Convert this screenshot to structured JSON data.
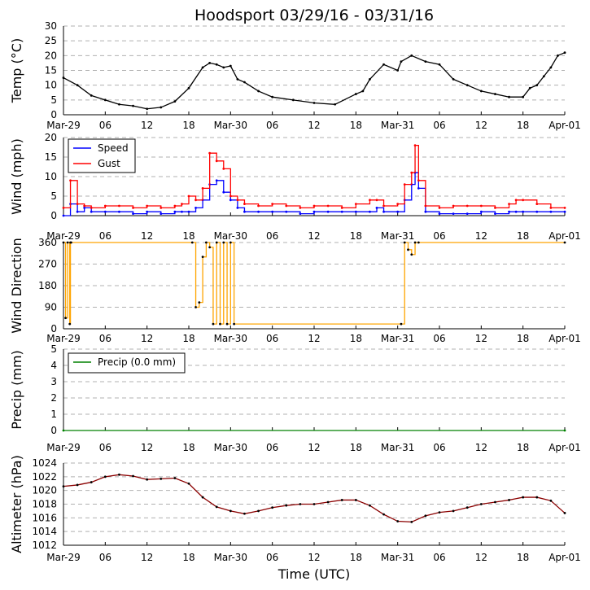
{
  "title": "Hoodsport 03/29/16 - 03/31/16",
  "xlabel": "Time (UTC)",
  "x_tick_labels": [
    "Mar-29",
    "06",
    "12",
    "18",
    "Mar-30",
    "06",
    "12",
    "18",
    "Mar-31",
    "06",
    "12",
    "18",
    "Apr-01"
  ],
  "colors": {
    "temp": "#000000",
    "speed": "#0000ff",
    "gust": "#ff0000",
    "direction_line": "#ffa500",
    "direction_marker": "#000000",
    "precip": "#008000",
    "altimeter_line": "#8b0000",
    "grid": "#b0b0b0"
  },
  "chart_data": [
    {
      "type": "line",
      "name": "temp",
      "ylabel": "Temp (°C)",
      "ylim": [
        0,
        30
      ],
      "yticks": [
        0,
        5,
        10,
        15,
        20,
        25,
        30
      ],
      "x_hours": [
        0,
        2,
        4,
        6,
        8,
        10,
        12,
        14,
        16,
        18,
        20,
        21,
        22,
        23,
        24,
        25,
        26,
        28,
        30,
        33,
        36,
        39,
        42,
        43,
        44,
        46,
        48,
        48.5,
        50,
        52,
        54,
        56,
        58,
        60,
        62,
        64,
        66,
        67,
        68,
        69,
        70,
        71,
        72
      ],
      "series": [
        {
          "name": "Temp",
          "values": [
            12.5,
            10,
            6.5,
            5,
            3.5,
            3,
            2,
            2.5,
            4.5,
            9,
            16,
            17.5,
            17,
            16,
            16.5,
            12,
            11,
            8,
            6,
            5,
            4,
            3.5,
            7,
            8,
            12,
            17,
            15,
            18,
            20,
            18,
            17,
            12,
            10,
            8,
            7,
            6,
            6,
            9,
            10,
            13,
            16,
            20,
            21
          ]
        }
      ]
    },
    {
      "type": "line",
      "name": "wind",
      "ylabel": "Wind (mph)",
      "ylim": [
        0,
        20
      ],
      "yticks": [
        0,
        5,
        10,
        15,
        20
      ],
      "legend": [
        "Speed",
        "Gust"
      ],
      "x_hours": [
        0,
        1,
        2,
        3,
        4,
        6,
        8,
        10,
        12,
        14,
        16,
        17,
        18,
        19,
        20,
        21,
        22,
        23,
        24,
        25,
        26,
        28,
        30,
        32,
        34,
        36,
        38,
        40,
        42,
        44,
        45,
        46,
        48,
        49,
        50,
        50.5,
        51,
        52,
        54,
        56,
        58,
        60,
        62,
        64,
        65,
        66,
        68,
        70,
        72
      ],
      "series": [
        {
          "name": "Speed",
          "values": [
            0,
            3,
            1,
            2,
            1,
            1,
            1,
            0.5,
            1,
            0.5,
            1,
            1,
            1,
            2,
            4,
            8,
            9,
            6,
            4,
            2,
            1,
            1,
            1,
            1,
            0.5,
            1,
            1,
            1,
            1,
            1,
            2,
            1,
            1,
            4,
            8,
            11,
            7,
            1,
            0.5,
            0.5,
            0.5,
            1,
            0.5,
            1,
            1,
            1,
            1,
            1,
            1
          ]
        },
        {
          "name": "Gust",
          "values": [
            2,
            9,
            3,
            2.5,
            2,
            2.5,
            2.5,
            2,
            2.5,
            2,
            2.5,
            3,
            5,
            4,
            7,
            16,
            14,
            12,
            5,
            4,
            3,
            2.5,
            3,
            2.5,
            2,
            2.5,
            2.5,
            2,
            3,
            4,
            4,
            2.5,
            3,
            8,
            11,
            18,
            9,
            2.5,
            2,
            2.5,
            2.5,
            2.5,
            2,
            3,
            4,
            4,
            3,
            2,
            2
          ]
        }
      ]
    },
    {
      "type": "line",
      "name": "wind_direction",
      "ylabel": "Wind Direction",
      "ylim": [
        0,
        360
      ],
      "yticks": [
        0,
        90,
        180,
        270,
        360
      ],
      "x_hours": [
        0,
        0.3,
        0.6,
        0.9,
        1,
        1.1,
        18.5,
        19,
        19.5,
        20,
        20.5,
        21,
        21.5,
        22,
        22.5,
        23,
        23.5,
        24,
        24.5,
        48.5,
        49,
        49.5,
        50,
        50.5,
        51,
        72
      ],
      "series": [
        {
          "name": "Direction",
          "values": [
            360,
            45,
            360,
            20,
            360,
            360,
            360,
            90,
            110,
            300,
            360,
            340,
            20,
            360,
            20,
            360,
            20,
            360,
            20,
            20,
            360,
            330,
            310,
            360,
            360,
            360
          ]
        }
      ]
    },
    {
      "type": "line",
      "name": "precip",
      "ylabel": "Precip (mm)",
      "ylim": [
        0,
        5
      ],
      "yticks": [
        0,
        1,
        2,
        3,
        4,
        5
      ],
      "legend": [
        "Precip (0.0 mm)"
      ],
      "x_hours": [
        0,
        72
      ],
      "series": [
        {
          "name": "Precip",
          "values": [
            0,
            0
          ]
        }
      ]
    },
    {
      "type": "line",
      "name": "altimeter",
      "ylabel": "Altimeter (hPa)",
      "ylim": [
        1012,
        1024
      ],
      "yticks": [
        1012,
        1014,
        1016,
        1018,
        1020,
        1022,
        1024
      ],
      "x_hours": [
        0,
        2,
        4,
        6,
        8,
        10,
        12,
        14,
        16,
        18,
        20,
        22,
        24,
        26,
        28,
        30,
        32,
        34,
        36,
        38,
        40,
        42,
        44,
        46,
        48,
        50,
        52,
        54,
        56,
        58,
        60,
        62,
        64,
        66,
        68,
        70,
        72
      ],
      "series": [
        {
          "name": "Altimeter",
          "values": [
            1020.6,
            1020.8,
            1021.2,
            1022,
            1022.3,
            1022.1,
            1021.6,
            1021.7,
            1021.8,
            1021,
            1019,
            1017.6,
            1017,
            1016.6,
            1017,
            1017.5,
            1017.8,
            1018,
            1018,
            1018.3,
            1018.6,
            1018.6,
            1017.8,
            1016.5,
            1015.5,
            1015.4,
            1016.3,
            1016.8,
            1017,
            1017.5,
            1018,
            1018.3,
            1018.6,
            1019,
            1019,
            1018.5,
            1016.7
          ]
        }
      ]
    }
  ]
}
